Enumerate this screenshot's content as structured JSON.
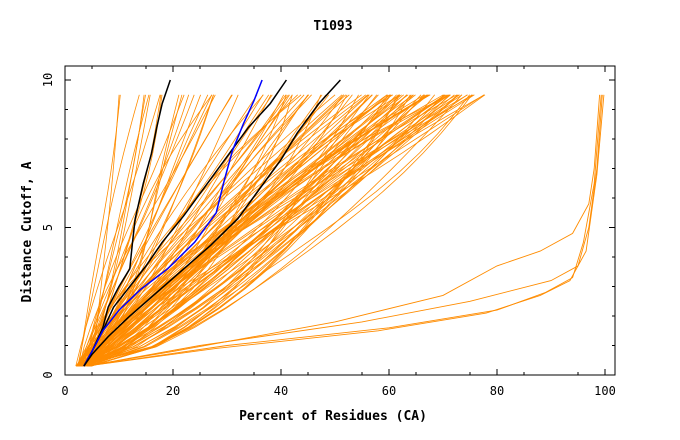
{
  "chart_data": {
    "type": "line",
    "title": "T1093",
    "xlabel": "Percent of Residues (CA)",
    "ylabel": "Distance Cutoff, A",
    "xlim": [
      0,
      100
    ],
    "ylim": [
      0,
      10
    ],
    "x_ticks": [
      "0",
      "20",
      "40",
      "60",
      "80",
      "100"
    ],
    "y_ticks": [
      "0",
      "5",
      "10"
    ],
    "grid": false,
    "legend": "none",
    "colors": {
      "background_series": "#ff8c00",
      "highlight_black": "#000000",
      "highlight_blue": "#0000ff"
    },
    "highlight_series": [
      {
        "color": "black",
        "points": [
          [
            3.5,
            0.3
          ],
          [
            5,
            0.8
          ],
          [
            7,
            1.6
          ],
          [
            8,
            2.3
          ],
          [
            10,
            3
          ],
          [
            12,
            3.6
          ],
          [
            12.5,
            4.5
          ],
          [
            13,
            5.3
          ],
          [
            14.5,
            6.5
          ],
          [
            16,
            7.5
          ],
          [
            17,
            8.4
          ],
          [
            18,
            9.2
          ],
          [
            19.5,
            10
          ]
        ]
      },
      {
        "color": "black",
        "points": [
          [
            3.5,
            0.3
          ],
          [
            5,
            0.8
          ],
          [
            7,
            1.5
          ],
          [
            9,
            2.3
          ],
          [
            12,
            3
          ],
          [
            15,
            3.7
          ],
          [
            18,
            4.5
          ],
          [
            22,
            5.4
          ],
          [
            26,
            6.4
          ],
          [
            30,
            7.4
          ],
          [
            34,
            8.4
          ],
          [
            38,
            9.2
          ],
          [
            41,
            10
          ]
        ]
      },
      {
        "color": "blue",
        "points": [
          [
            3.5,
            0.3
          ],
          [
            5,
            0.8
          ],
          [
            7,
            1.5
          ],
          [
            10,
            2.2
          ],
          [
            14,
            2.9
          ],
          [
            19,
            3.6
          ],
          [
            24,
            4.5
          ],
          [
            28,
            5.5
          ],
          [
            29.5,
            6.6
          ],
          [
            31,
            7.6
          ],
          [
            33,
            8.5
          ],
          [
            35,
            9.3
          ],
          [
            36.5,
            10
          ]
        ]
      },
      {
        "color": "black",
        "points": [
          [
            3.5,
            0.3
          ],
          [
            5,
            0.7
          ],
          [
            8,
            1.3
          ],
          [
            12,
            2
          ],
          [
            17,
            2.8
          ],
          [
            22,
            3.6
          ],
          [
            27,
            4.4
          ],
          [
            32,
            5.3
          ],
          [
            36,
            6.3
          ],
          [
            40,
            7.3
          ],
          [
            43,
            8.2
          ],
          [
            47,
            9.2
          ],
          [
            51,
            10
          ]
        ]
      }
    ],
    "outlier_series": [
      {
        "points": [
          [
            4,
            0.3
          ],
          [
            20,
            0.8
          ],
          [
            50,
            1.8
          ],
          [
            70,
            2.7
          ],
          [
            80,
            3.7
          ],
          [
            88,
            4.2
          ],
          [
            94,
            4.8
          ],
          [
            97,
            5.8
          ],
          [
            98,
            7
          ],
          [
            99,
            9.5
          ]
        ]
      },
      {
        "points": [
          [
            4,
            0.3
          ],
          [
            25,
            1
          ],
          [
            55,
            1.8
          ],
          [
            75,
            2.5
          ],
          [
            90,
            3.2
          ],
          [
            95,
            3.7
          ],
          [
            97,
            5
          ],
          [
            98.5,
            7
          ],
          [
            99.5,
            9.5
          ]
        ]
      },
      {
        "points": [
          [
            4,
            0.3
          ],
          [
            30,
            1
          ],
          [
            60,
            1.6
          ],
          [
            80,
            2.2
          ],
          [
            89,
            2.8
          ],
          [
            94,
            3.3
          ],
          [
            96,
            4.5
          ],
          [
            98,
            6.5
          ],
          [
            99.3,
            9.5
          ]
        ]
      },
      {
        "points": [
          [
            4,
            0.3
          ],
          [
            28,
            0.9
          ],
          [
            58,
            1.5
          ],
          [
            78,
            2.1
          ],
          [
            88,
            2.7
          ],
          [
            93.5,
            3.2
          ],
          [
            96.5,
            4.2
          ],
          [
            98.5,
            6.8
          ],
          [
            99.8,
            9.5
          ]
        ]
      }
    ],
    "background_envelope": {
      "description_count": 130,
      "start_x_range": [
        2,
        5
      ],
      "end_x_range": [
        10,
        78
      ],
      "y_top": 9.5
    }
  }
}
